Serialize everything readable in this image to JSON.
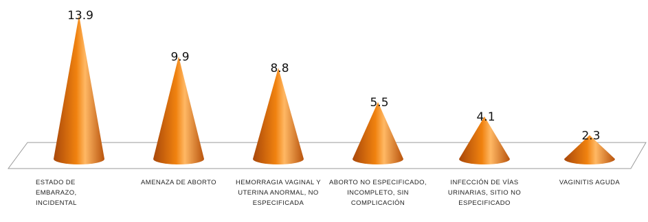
{
  "chart_data": {
    "type": "bar",
    "shape": "cone",
    "style": "3d",
    "categories": [
      "ESTADO DE EMBARAZO, INCIDENTAL",
      "AMENAZA DE ABORTO",
      "HEMORRAGIA VAGINAL Y UTERINA ANORMAL, NO ESPECIFICADA",
      "ABORTO NO ESPECIFICADO, INCOMPLETO, SIN COMPLICACIÓN",
      "INFECCIÓN DE VÍAS URINARIAS, SITIO NO ESPECIFICADO",
      "VAGINITIS AGUDA"
    ],
    "values": [
      13.9,
      9.9,
      8.8,
      5.5,
      4.1,
      2.3
    ],
    "value_labels": [
      "13.9",
      "9.9",
      "8.8",
      "5.5",
      "4.1",
      "2.3"
    ],
    "title": "",
    "xlabel": "",
    "ylabel": "",
    "ylim": [
      0,
      13.9
    ],
    "grid": false,
    "legend": "none",
    "colors": {
      "cone_dark": "#a8470a",
      "cone_mid": "#f0820f",
      "cone_light": "#ffb864",
      "floor_stroke": "#9a9a9a"
    }
  }
}
